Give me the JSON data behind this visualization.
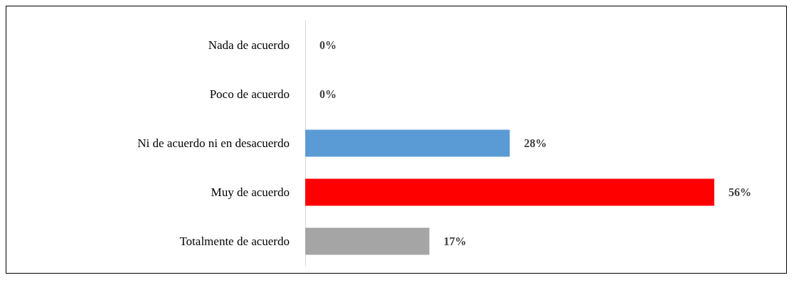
{
  "chart_data": {
    "type": "bar",
    "orientation": "horizontal",
    "categories": [
      "Nada de acuerdo",
      "Poco de acuerdo",
      "Ni de acuerdo ni en desacuerdo",
      "Muy de acuerdo",
      "Totalmente de acuerdo"
    ],
    "values": [
      0,
      0,
      28,
      56,
      17
    ],
    "colors": [
      "#5b9bd5",
      "#5b9bd5",
      "#5b9bd5",
      "#ff0000",
      "#a5a5a5"
    ],
    "value_labels": [
      "0%",
      "0%",
      "28%",
      "56%",
      "17%"
    ]
  }
}
